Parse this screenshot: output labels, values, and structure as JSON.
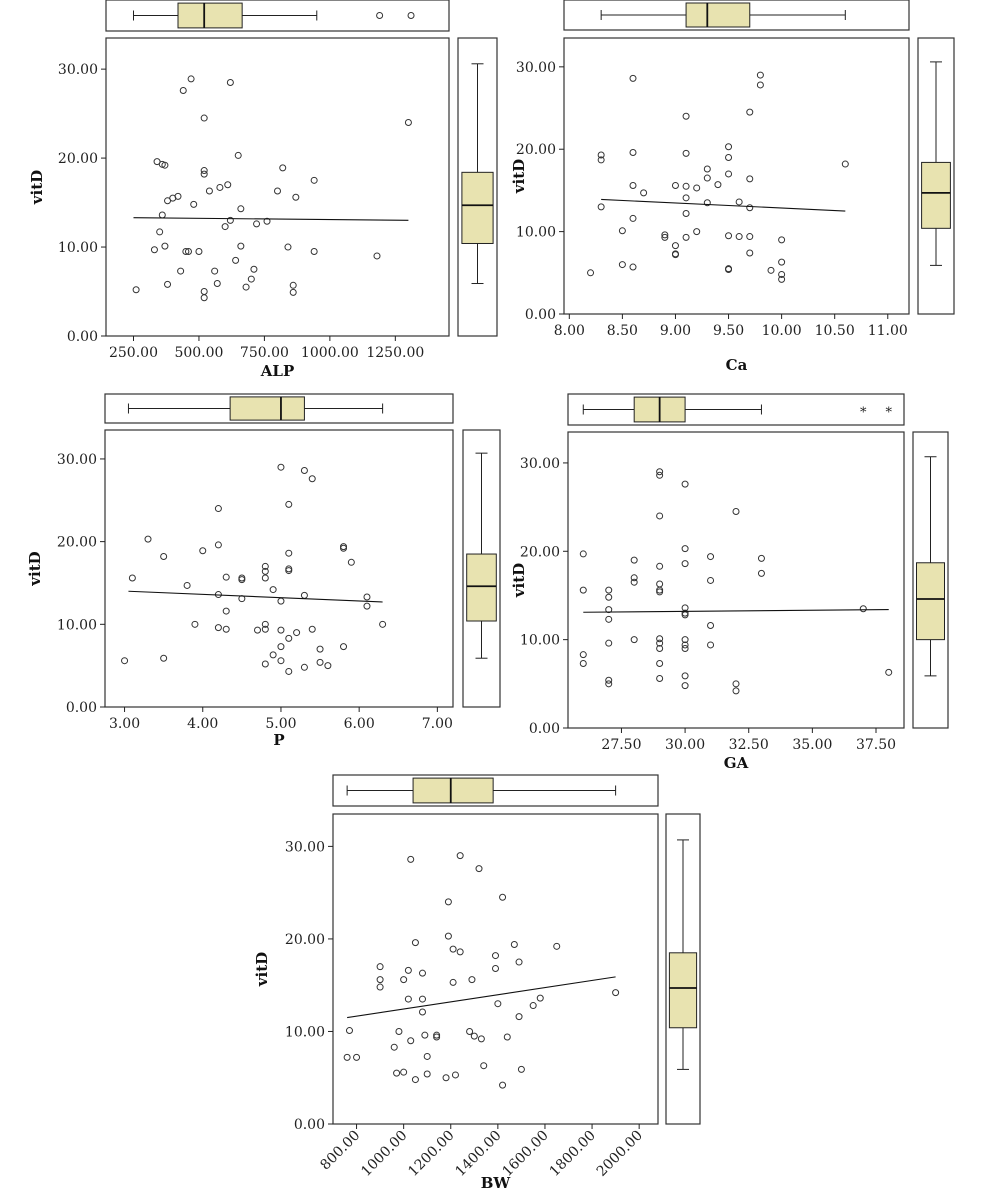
{
  "colors": {
    "box_fill": "#e8e3b0",
    "stroke": "#222222",
    "frame": "#333333",
    "point_stroke": "#333333"
  },
  "chart_data": [
    {
      "id": "alp",
      "type": "scatter",
      "xlabel": "ALP",
      "ylabel": "vitD",
      "xlim": [
        145,
        1455
      ],
      "ylim": [
        0,
        33.5
      ],
      "xticks": [
        250,
        500,
        750,
        1000,
        1250
      ],
      "xtick_labels": [
        "250.00",
        "500.00",
        "750.00",
        "1000.00",
        "1250.00"
      ],
      "yticks": [
        0,
        10,
        20,
        30
      ],
      "ytick_labels": [
        "0.00",
        "10.00",
        "20.00",
        "30.00"
      ],
      "x_tick_rotation": 0,
      "fit_line": {
        "x": [
          250,
          1300
        ],
        "y": [
          13.3,
          13.0
        ]
      },
      "x_box": {
        "whisker_low": 250,
        "q1": 420,
        "median": 520,
        "q3": 665,
        "whisker_high": 950,
        "outliers": [
          1190,
          1310
        ]
      },
      "y_box": {
        "whisker_low": 5.9,
        "q1": 10.4,
        "median": 14.7,
        "q3": 18.4,
        "whisker_high": 30.6,
        "outliers": []
      },
      "points": [
        [
          260,
          5.2
        ],
        [
          380,
          5.8
        ],
        [
          400,
          15.5
        ],
        [
          420,
          15.7
        ],
        [
          460,
          9.5
        ],
        [
          430,
          7.3
        ],
        [
          500,
          9.5
        ],
        [
          480,
          14.8
        ],
        [
          520,
          4.3
        ],
        [
          520,
          5.0
        ],
        [
          540,
          16.3
        ],
        [
          580,
          16.7
        ],
        [
          600,
          12.3
        ],
        [
          610,
          17.0
        ],
        [
          620,
          13.0
        ],
        [
          640,
          8.5
        ],
        [
          650,
          20.3
        ],
        [
          660,
          14.3
        ],
        [
          660,
          10.1
        ],
        [
          680,
          5.5
        ],
        [
          700,
          6.4
        ],
        [
          710,
          7.5
        ],
        [
          720,
          12.6
        ],
        [
          760,
          12.9
        ],
        [
          800,
          16.3
        ],
        [
          820,
          18.9
        ],
        [
          840,
          10.0
        ],
        [
          860,
          5.7
        ],
        [
          860,
          4.9
        ],
        [
          870,
          15.6
        ],
        [
          940,
          17.5
        ],
        [
          940,
          9.5
        ],
        [
          340,
          19.6
        ],
        [
          360,
          19.3
        ],
        [
          370,
          19.2
        ],
        [
          350,
          11.7
        ],
        [
          360,
          13.6
        ],
        [
          380,
          15.2
        ],
        [
          330,
          9.7
        ],
        [
          370,
          10.1
        ],
        [
          440,
          27.6
        ],
        [
          470,
          28.9
        ],
        [
          520,
          24.5
        ],
        [
          620,
          28.5
        ],
        [
          520,
          18.2
        ],
        [
          520,
          18.6
        ],
        [
          560,
          7.3
        ],
        [
          570,
          5.9
        ],
        [
          1180,
          9.0
        ],
        [
          1300,
          24.0
        ],
        [
          450,
          9.5
        ]
      ]
    },
    {
      "id": "ca",
      "type": "scatter",
      "xlabel": "Ca",
      "ylabel": "vitD",
      "xlim": [
        7.95,
        11.2
      ],
      "ylim": [
        0,
        33.5
      ],
      "xticks": [
        8.0,
        8.5,
        9.0,
        9.5,
        10.0,
        10.5,
        11.0
      ],
      "xtick_labels": [
        "8.00",
        "8.50",
        "9.00",
        "9.50",
        "10.00",
        "10.50",
        "11.00"
      ],
      "yticks": [
        0,
        10,
        20,
        30
      ],
      "ytick_labels": [
        "0.00",
        "10.00",
        "20.00",
        "30.00"
      ],
      "x_tick_rotation": 0,
      "fit_line": {
        "x": [
          8.3,
          10.6
        ],
        "y": [
          13.9,
          12.5
        ]
      },
      "x_box": {
        "whisker_low": 8.3,
        "q1": 9.1,
        "median": 9.3,
        "q3": 9.7,
        "whisker_high": 10.6,
        "outliers": []
      },
      "y_box": {
        "whisker_low": 5.9,
        "q1": 10.4,
        "median": 14.7,
        "q3": 18.4,
        "whisker_high": 30.6,
        "outliers": []
      },
      "points": [
        [
          8.2,
          5.0
        ],
        [
          8.3,
          13.0
        ],
        [
          8.3,
          18.7
        ],
        [
          8.3,
          19.3
        ],
        [
          8.5,
          10.1
        ],
        [
          8.5,
          6.0
        ],
        [
          8.6,
          5.7
        ],
        [
          8.6,
          11.6
        ],
        [
          8.6,
          15.6
        ],
        [
          8.6,
          19.6
        ],
        [
          8.6,
          28.6
        ],
        [
          8.7,
          14.7
        ],
        [
          8.9,
          9.3
        ],
        [
          8.9,
          9.6
        ],
        [
          9.0,
          7.2
        ],
        [
          9.0,
          8.3
        ],
        [
          9.0,
          7.3
        ],
        [
          9.0,
          15.6
        ],
        [
          9.1,
          15.5
        ],
        [
          9.1,
          12.2
        ],
        [
          9.1,
          14.1
        ],
        [
          9.1,
          9.3
        ],
        [
          9.1,
          19.5
        ],
        [
          9.1,
          24.0
        ],
        [
          9.2,
          15.3
        ],
        [
          9.2,
          10.0
        ],
        [
          9.3,
          17.6
        ],
        [
          9.3,
          16.5
        ],
        [
          9.3,
          13.5
        ],
        [
          9.4,
          15.7
        ],
        [
          9.5,
          9.5
        ],
        [
          9.5,
          5.4
        ],
        [
          9.5,
          5.5
        ],
        [
          9.5,
          17.0
        ],
        [
          9.5,
          19.0
        ],
        [
          9.5,
          20.3
        ],
        [
          9.6,
          13.6
        ],
        [
          9.6,
          9.4
        ],
        [
          9.7,
          7.4
        ],
        [
          9.7,
          9.4
        ],
        [
          9.7,
          12.9
        ],
        [
          9.7,
          16.4
        ],
        [
          9.7,
          24.5
        ],
        [
          9.8,
          27.8
        ],
        [
          9.8,
          29.0
        ],
        [
          9.9,
          5.3
        ],
        [
          10.0,
          4.2
        ],
        [
          10.0,
          4.8
        ],
        [
          10.0,
          6.3
        ],
        [
          10.0,
          9.0
        ],
        [
          10.6,
          18.2
        ]
      ]
    },
    {
      "id": "p",
      "type": "scatter",
      "xlabel": "P",
      "ylabel": "vitD",
      "xlim": [
        2.75,
        7.2
      ],
      "ylim": [
        0,
        33.5
      ],
      "xticks": [
        3.0,
        4.0,
        5.0,
        6.0,
        7.0
      ],
      "xtick_labels": [
        "3.00",
        "4.00",
        "5.00",
        "6.00",
        "7.00"
      ],
      "yticks": [
        0,
        10,
        20,
        30
      ],
      "ytick_labels": [
        "0.00",
        "10.00",
        "20.00",
        "30.00"
      ],
      "x_tick_rotation": 0,
      "fit_line": {
        "x": [
          3.05,
          6.3
        ],
        "y": [
          14.0,
          12.7
        ]
      },
      "x_box": {
        "whisker_low": 3.05,
        "q1": 4.35,
        "median": 5.0,
        "q3": 5.3,
        "whisker_high": 6.3,
        "outliers": []
      },
      "y_box": {
        "whisker_low": 5.9,
        "q1": 10.4,
        "median": 14.6,
        "q3": 18.5,
        "whisker_high": 30.7,
        "outliers": []
      },
      "points": [
        [
          3.0,
          5.6
        ],
        [
          3.1,
          15.6
        ],
        [
          3.3,
          20.3
        ],
        [
          3.5,
          18.2
        ],
        [
          3.5,
          5.9
        ],
        [
          3.8,
          14.7
        ],
        [
          3.9,
          10.0
        ],
        [
          4.0,
          18.9
        ],
        [
          4.2,
          24.0
        ],
        [
          4.2,
          19.6
        ],
        [
          4.2,
          13.6
        ],
        [
          4.2,
          9.6
        ],
        [
          4.3,
          11.6
        ],
        [
          4.3,
          15.7
        ],
        [
          4.3,
          9.4
        ],
        [
          4.5,
          15.6
        ],
        [
          4.5,
          15.4
        ],
        [
          4.5,
          13.1
        ],
        [
          4.7,
          9.3
        ],
        [
          4.8,
          15.6
        ],
        [
          4.8,
          16.4
        ],
        [
          4.8,
          17.0
        ],
        [
          4.8,
          10.0
        ],
        [
          4.8,
          9.4
        ],
        [
          4.8,
          5.2
        ],
        [
          4.9,
          14.2
        ],
        [
          4.9,
          6.3
        ],
        [
          5.0,
          12.8
        ],
        [
          5.0,
          29.0
        ],
        [
          5.0,
          7.3
        ],
        [
          5.0,
          9.3
        ],
        [
          5.0,
          5.6
        ],
        [
          5.1,
          8.3
        ],
        [
          5.1,
          4.3
        ],
        [
          5.1,
          16.5
        ],
        [
          5.1,
          16.7
        ],
        [
          5.1,
          18.6
        ],
        [
          5.1,
          24.5
        ],
        [
          5.2,
          9.0
        ],
        [
          5.3,
          28.6
        ],
        [
          5.3,
          13.5
        ],
        [
          5.3,
          4.8
        ],
        [
          5.4,
          27.6
        ],
        [
          5.4,
          9.4
        ],
        [
          5.5,
          7.0
        ],
        [
          5.5,
          5.4
        ],
        [
          5.6,
          5.0
        ],
        [
          5.8,
          7.3
        ],
        [
          5.8,
          19.2
        ],
        [
          5.8,
          19.4
        ],
        [
          5.9,
          17.5
        ],
        [
          6.1,
          13.3
        ],
        [
          6.1,
          12.2
        ],
        [
          6.3,
          10.0
        ]
      ]
    },
    {
      "id": "ga",
      "type": "scatter",
      "xlabel": "GA",
      "ylabel": "vitD",
      "xlim": [
        25.4,
        38.6
      ],
      "ylim": [
        0,
        33.5
      ],
      "xticks": [
        27.5,
        30.0,
        32.5,
        35.0,
        37.5
      ],
      "xtick_labels": [
        "27.50",
        "30.00",
        "32.50",
        "35.00",
        "37.50"
      ],
      "yticks": [
        0,
        10,
        20,
        30
      ],
      "ytick_labels": [
        "0.00",
        "10.00",
        "20.00",
        "30.00"
      ],
      "x_tick_rotation": 0,
      "fit_line": {
        "x": [
          26.0,
          38.0
        ],
        "y": [
          13.1,
          13.4
        ]
      },
      "x_box": {
        "whisker_low": 26.0,
        "q1": 28.0,
        "median": 29.0,
        "q3": 30.0,
        "whisker_high": 33.0,
        "outliers": [
          37.0,
          38.0
        ]
      },
      "y_box": {
        "whisker_low": 5.9,
        "q1": 10.0,
        "median": 14.6,
        "q3": 18.7,
        "whisker_high": 30.7,
        "outliers": []
      },
      "points": [
        [
          26.0,
          19.7
        ],
        [
          26.0,
          15.6
        ],
        [
          26.0,
          8.3
        ],
        [
          26.0,
          7.3
        ],
        [
          27.0,
          15.6
        ],
        [
          27.0,
          14.8
        ],
        [
          27.0,
          13.4
        ],
        [
          27.0,
          12.3
        ],
        [
          27.0,
          9.6
        ],
        [
          27.0,
          5.4
        ],
        [
          27.0,
          5.0
        ],
        [
          28.0,
          19.0
        ],
        [
          28.0,
          17.0
        ],
        [
          28.0,
          16.5
        ],
        [
          28.0,
          10.0
        ],
        [
          29.0,
          29.0
        ],
        [
          29.0,
          28.6
        ],
        [
          29.0,
          24.0
        ],
        [
          29.0,
          18.3
        ],
        [
          29.0,
          16.3
        ],
        [
          29.0,
          15.6
        ],
        [
          29.0,
          15.4
        ],
        [
          29.0,
          10.1
        ],
        [
          29.0,
          9.6
        ],
        [
          29.0,
          9.0
        ],
        [
          29.0,
          7.3
        ],
        [
          29.0,
          5.6
        ],
        [
          30.0,
          27.6
        ],
        [
          30.0,
          20.3
        ],
        [
          30.0,
          18.6
        ],
        [
          30.0,
          13.6
        ],
        [
          30.0,
          13.0
        ],
        [
          30.0,
          12.8
        ],
        [
          30.0,
          10.0
        ],
        [
          30.0,
          9.4
        ],
        [
          30.0,
          9.0
        ],
        [
          30.0,
          5.9
        ],
        [
          30.0,
          4.8
        ],
        [
          31.0,
          19.4
        ],
        [
          31.0,
          16.7
        ],
        [
          31.0,
          11.6
        ],
        [
          31.0,
          9.4
        ],
        [
          32.0,
          24.5
        ],
        [
          32.0,
          5.0
        ],
        [
          32.0,
          4.2
        ],
        [
          33.0,
          19.2
        ],
        [
          33.0,
          17.5
        ],
        [
          37.0,
          13.5
        ],
        [
          38.0,
          6.3
        ]
      ]
    },
    {
      "id": "bw",
      "type": "scatter",
      "xlabel": "BW",
      "ylabel": "vitD",
      "xlim": [
        700,
        2080
      ],
      "ylim": [
        0,
        33.5
      ],
      "xticks": [
        800,
        1000,
        1200,
        1400,
        1600,
        1800,
        2000
      ],
      "xtick_labels": [
        "800.00",
        "1000.00",
        "1200.00",
        "1400.00",
        "1600.00",
        "1800.00",
        "2000.00"
      ],
      "yticks": [
        0,
        10,
        20,
        30
      ],
      "ytick_labels": [
        "0.00",
        "10.00",
        "20.00",
        "30.00"
      ],
      "x_tick_rotation": -45,
      "fit_line": {
        "x": [
          760,
          1900
        ],
        "y": [
          11.5,
          15.9
        ]
      },
      "x_box": {
        "whisker_low": 760,
        "q1": 1040,
        "median": 1200,
        "q3": 1380,
        "whisker_high": 1900,
        "outliers": []
      },
      "y_box": {
        "whisker_low": 5.9,
        "q1": 10.4,
        "median": 14.7,
        "q3": 18.5,
        "whisker_high": 30.7,
        "outliers": []
      },
      "points": [
        [
          760,
          7.2
        ],
        [
          770,
          10.1
        ],
        [
          800,
          7.2
        ],
        [
          900,
          15.6
        ],
        [
          900,
          17.0
        ],
        [
          900,
          14.8
        ],
        [
          960,
          8.3
        ],
        [
          970,
          5.5
        ],
        [
          980,
          10.0
        ],
        [
          1000,
          5.6
        ],
        [
          1000,
          15.6
        ],
        [
          1020,
          16.6
        ],
        [
          1030,
          28.6
        ],
        [
          1020,
          13.5
        ],
        [
          1030,
          9.0
        ],
        [
          1050,
          19.6
        ],
        [
          1050,
          4.8
        ],
        [
          1080,
          13.5
        ],
        [
          1080,
          16.3
        ],
        [
          1080,
          12.1
        ],
        [
          1090,
          9.6
        ],
        [
          1100,
          7.3
        ],
        [
          1100,
          5.4
        ],
        [
          1140,
          9.4
        ],
        [
          1140,
          9.6
        ],
        [
          1180,
          5.0
        ],
        [
          1190,
          20.3
        ],
        [
          1190,
          24.0
        ],
        [
          1210,
          15.3
        ],
        [
          1210,
          18.9
        ],
        [
          1220,
          5.3
        ],
        [
          1240,
          29.0
        ],
        [
          1240,
          18.6
        ],
        [
          1280,
          10.0
        ],
        [
          1290,
          15.6
        ],
        [
          1300,
          9.5
        ],
        [
          1320,
          27.6
        ],
        [
          1330,
          9.2
        ],
        [
          1340,
          6.3
        ],
        [
          1390,
          18.2
        ],
        [
          1390,
          16.8
        ],
        [
          1400,
          13.0
        ],
        [
          1420,
          24.5
        ],
        [
          1420,
          4.2
        ],
        [
          1440,
          9.4
        ],
        [
          1470,
          19.4
        ],
        [
          1490,
          17.5
        ],
        [
          1490,
          11.6
        ],
        [
          1500,
          5.9
        ],
        [
          1550,
          12.8
        ],
        [
          1580,
          13.6
        ],
        [
          1650,
          19.2
        ],
        [
          1900,
          14.2
        ]
      ]
    }
  ]
}
